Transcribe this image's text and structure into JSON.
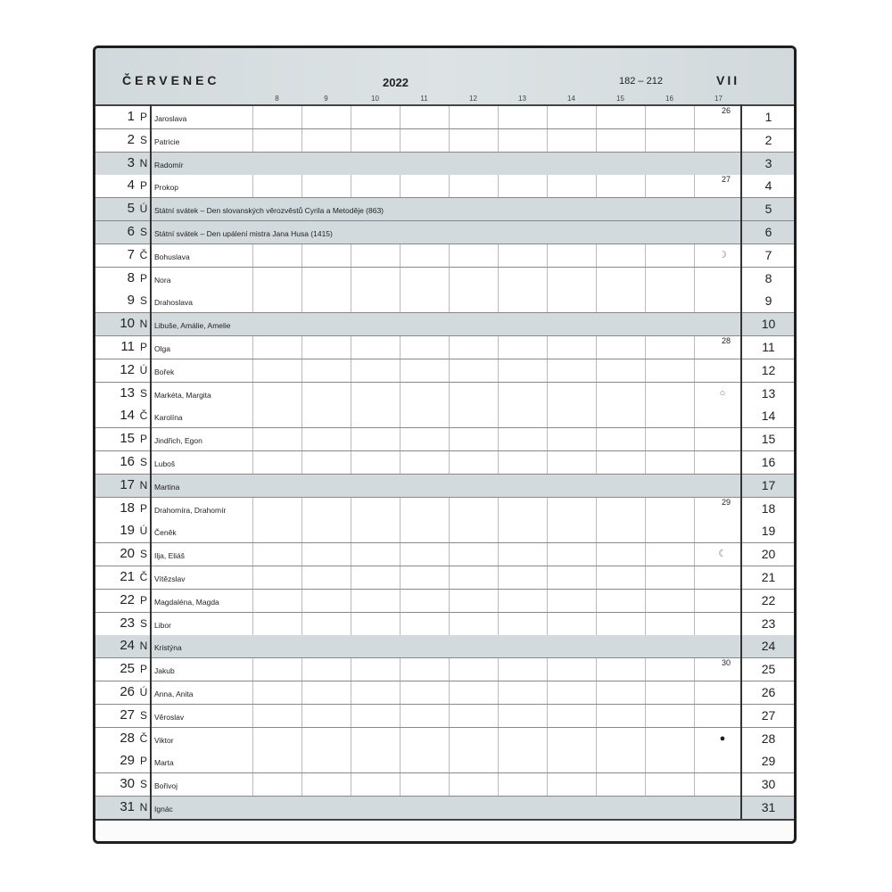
{
  "header": {
    "month": "ČERVENEC",
    "year": "2022",
    "day_range": "182 – 212",
    "roman_month": "VII",
    "hours": [
      "8",
      "9",
      "10",
      "11",
      "12",
      "13",
      "14",
      "15",
      "16",
      "17"
    ]
  },
  "colors": {
    "gray_row": "#d3dadd",
    "header": "#d5dcdf",
    "frame": "#1e1e1e"
  },
  "days": [
    {
      "d": "1",
      "w": "P",
      "name": "Jaroslava",
      "week": "26"
    },
    {
      "d": "2",
      "w": "S",
      "name": "Patricie"
    },
    {
      "d": "3",
      "w": "N",
      "name": "Radomír",
      "gray": true
    },
    {
      "d": "4",
      "w": "P",
      "name": "Prokop",
      "week": "27"
    },
    {
      "d": "5",
      "w": "Ú",
      "name": "Státní svátek – Den slovanských věrozvěstů Cyrila a Metoděje (863)",
      "gray": true
    },
    {
      "d": "6",
      "w": "S",
      "name": "Státní svátek – Den upálení mistra Jana Husa (1415)",
      "gray": true
    },
    {
      "d": "7",
      "w": "Č",
      "name": "Bohuslava",
      "moon": "first-quarter"
    },
    {
      "d": "8",
      "w": "P",
      "name": "Nora"
    },
    {
      "d": "9",
      "w": "S",
      "name": "Drahoslava"
    },
    {
      "d": "10",
      "w": "N",
      "name": "Libuše, Amálie, Amelie",
      "gray": true
    },
    {
      "d": "11",
      "w": "P",
      "name": "Olga",
      "week": "28"
    },
    {
      "d": "12",
      "w": "Ú",
      "name": "Bořek"
    },
    {
      "d": "13",
      "w": "S",
      "name": "Markéta, Margita",
      "moon": "full"
    },
    {
      "d": "14",
      "w": "Č",
      "name": "Karolína"
    },
    {
      "d": "15",
      "w": "P",
      "name": "Jindřich, Egon"
    },
    {
      "d": "16",
      "w": "S",
      "name": "Luboš"
    },
    {
      "d": "17",
      "w": "N",
      "name": "Martina",
      "gray": true
    },
    {
      "d": "18",
      "w": "P",
      "name": "Drahomíra, Drahomír",
      "week": "29"
    },
    {
      "d": "19",
      "w": "Ú",
      "name": "Čeněk"
    },
    {
      "d": "20",
      "w": "S",
      "name": "Ilja, Eliáš",
      "moon": "last-quarter"
    },
    {
      "d": "21",
      "w": "Č",
      "name": "Vítězslav"
    },
    {
      "d": "22",
      "w": "P",
      "name": "Magdaléna, Magda"
    },
    {
      "d": "23",
      "w": "S",
      "name": "Libor"
    },
    {
      "d": "24",
      "w": "N",
      "name": "Kristýna",
      "gray": true
    },
    {
      "d": "25",
      "w": "P",
      "name": "Jakub",
      "week": "30"
    },
    {
      "d": "26",
      "w": "Ú",
      "name": "Anna, Anita"
    },
    {
      "d": "27",
      "w": "S",
      "name": "Věroslav"
    },
    {
      "d": "28",
      "w": "Č",
      "name": "Viktor",
      "moon": "new"
    },
    {
      "d": "29",
      "w": "P",
      "name": "Marta"
    },
    {
      "d": "30",
      "w": "S",
      "name": "Bořivoj"
    },
    {
      "d": "31",
      "w": "N",
      "name": "Ignác",
      "gray": true
    }
  ]
}
